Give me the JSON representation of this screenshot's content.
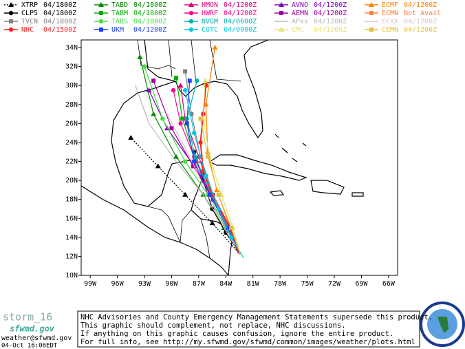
{
  "map": {
    "storm": "storm_16",
    "lonlim": [
      100,
      65
    ],
    "latlim": [
      10,
      34.8
    ],
    "lonticks": [
      {
        "value": 99,
        "label": "99W"
      },
      {
        "value": 96,
        "label": "96W"
      },
      {
        "value": 93,
        "label": "93W"
      },
      {
        "value": 90,
        "label": "90W"
      },
      {
        "value": 87,
        "label": "87W"
      },
      {
        "value": 84,
        "label": "84W"
      },
      {
        "value": 81,
        "label": "81W"
      },
      {
        "value": 78,
        "label": "78W"
      },
      {
        "value": 75,
        "label": "75W"
      },
      {
        "value": 72,
        "label": "72W"
      },
      {
        "value": 69,
        "label": "69W"
      },
      {
        "value": 66,
        "label": "66W"
      }
    ],
    "latticks": [
      {
        "value": 34,
        "label": "34N"
      },
      {
        "value": 32,
        "label": "32N"
      },
      {
        "value": 30,
        "label": "30N"
      },
      {
        "value": 28,
        "label": "28N"
      },
      {
        "value": 26,
        "label": "26N"
      },
      {
        "value": 24,
        "label": "24N"
      },
      {
        "value": 22,
        "label": "22N"
      },
      {
        "value": 20,
        "label": "20N"
      },
      {
        "value": 18,
        "label": "18N"
      },
      {
        "value": 16,
        "label": "16N"
      },
      {
        "value": 14,
        "label": "14N"
      },
      {
        "value": 12,
        "label": "12N"
      },
      {
        "value": 10,
        "label": "10N"
      }
    ],
    "models": [
      {
        "name": "XTRP",
        "time": "04/1800Z",
        "color": "#000000",
        "marker": "triangle",
        "dash": true,
        "lon": [
          82.4,
          85.5,
          88.5,
          91.5,
          94.5
        ],
        "lat": [
          12.2,
          15.5,
          18.5,
          21.5,
          24.5
        ]
      },
      {
        "name": "TABD",
        "time": "04/1800Z",
        "color": "#008800",
        "marker": "triangle",
        "lon": [
          82.4,
          84.2,
          86.5,
          89.5,
          92,
          93.5
        ],
        "lat": [
          12.2,
          15,
          18.5,
          22.5,
          27,
          33
        ]
      },
      {
        "name": "HMON",
        "time": "04/1200Z",
        "color": "#e0007a",
        "marker": "triangle",
        "lon": [
          82.4,
          83.8,
          85.5,
          87,
          88.5,
          89
        ],
        "lat": [
          12.2,
          15,
          18.5,
          22.5,
          26.5,
          30
        ]
      },
      {
        "name": "AVNO",
        "time": "04/1200Z",
        "color": "#8000c0",
        "marker": "triangle",
        "lon": [
          82.4,
          83.6,
          85.3,
          87.5,
          90.5,
          92.5
        ],
        "lat": [
          12.2,
          15,
          18,
          21.5,
          25.5,
          29.5
        ]
      },
      {
        "name": "ECMF",
        "time": "04/1200Z",
        "color": "#ff8000",
        "marker": "triangle",
        "lon": [
          82.4,
          83.5,
          85,
          86,
          86.2,
          85.2
        ],
        "lat": [
          12.2,
          15,
          19,
          23,
          28,
          34
        ]
      },
      {
        "name": "CLP5",
        "time": "04/1800Z",
        "color": "#000000",
        "marker": "circle",
        "lon": [
          82.4,
          84,
          85.5,
          86.5,
          87.5
        ],
        "lat": [
          12.2,
          14.5,
          17,
          20,
          23
        ]
      },
      {
        "name": "TABM",
        "time": "04/1800Z",
        "color": "#00b000",
        "marker": "square",
        "lon": [
          82.4,
          83.8,
          85.6,
          87.3,
          88.8,
          89.5
        ],
        "lat": [
          12.2,
          15,
          18.5,
          22,
          26.5,
          30.8
        ]
      },
      {
        "name": "HWRF",
        "time": "04/1200Z",
        "color": "#ff0090",
        "marker": "circle",
        "lon": [
          82.4,
          83.9,
          85.7,
          87.5,
          89,
          89.8
        ],
        "lat": [
          12.2,
          15,
          18.5,
          22.5,
          26,
          29.5
        ]
      },
      {
        "name": "AEMN",
        "time": "04/1200Z",
        "color": "#a000a0",
        "marker": "square",
        "lon": [
          82.4,
          83.7,
          85.4,
          87.6,
          90,
          92
        ],
        "lat": [
          12.2,
          15,
          18,
          21.5,
          25.5,
          30.5
        ]
      },
      {
        "name": "ECMN",
        "time": "Not Avail",
        "color": "#ff8040",
        "marker": "square"
      },
      {
        "name": "TVCN",
        "time": "04/1800Z",
        "color": "#808080",
        "marker": "square",
        "lon": [
          82.4,
          83.7,
          85.4,
          86.8,
          87.8,
          88.5
        ],
        "lat": [
          12.2,
          15,
          18.5,
          22.5,
          27,
          31.5
        ]
      },
      {
        "name": "TABS",
        "time": "04/1800Z",
        "color": "#40e040",
        "marker": "circle",
        "lon": [
          82.4,
          84,
          86,
          88.5,
          91,
          93
        ],
        "lat": [
          12.2,
          15,
          18.5,
          22,
          26.5,
          32
        ]
      },
      {
        "name": "NVGM",
        "time": "04/0600Z",
        "color": "#00b0b0",
        "marker": "circle",
        "lon": [
          82.4,
          83.8,
          85.6,
          87.4,
          88.3,
          87.2
        ],
        "lat": [
          12.2,
          15,
          18.5,
          22.5,
          26.5,
          30.5
        ]
      },
      {
        "name": "APxx",
        "time": "04/1200Z",
        "color": "#b8b8b8",
        "marker": "none",
        "lon": [
          82.4,
          84,
          86.5,
          89.5,
          92.5,
          94
        ],
        "lat": [
          12.2,
          15,
          18.5,
          22,
          26,
          30
        ]
      },
      {
        "name": "EEXX",
        "time": "04/1200Z",
        "color": "#e0c0c8",
        "marker": "none",
        "lon": [
          82.4,
          84.2,
          86,
          88,
          90.5
        ],
        "lat": [
          12.2,
          15,
          18.5,
          22.5,
          27
        ]
      },
      {
        "name": "NHC",
        "time": "04/1500Z",
        "color": "#ff2020",
        "marker": "circle",
        "lon": [
          82.6,
          83.5,
          85.5,
          86.5,
          86.8,
          86.5,
          86.2
        ],
        "lat": [
          12.3,
          15,
          18.5,
          21,
          24,
          27,
          30
        ]
      },
      {
        "name": "UKM",
        "time": "04/1200Z",
        "color": "#2040ff",
        "marker": "square",
        "lon": [
          82.4,
          83.8,
          85.8,
          87.5,
          88.3,
          88
        ],
        "lat": [
          12.2,
          15,
          18.5,
          22,
          26,
          30.5
        ]
      },
      {
        "name": "COTC",
        "time": "04/0000Z",
        "color": "#00c8e0",
        "marker": "circle",
        "lon": [
          82,
          83.4,
          84.8,
          86.2,
          87.5,
          88.5
        ],
        "lat": [
          11.8,
          14,
          17,
          20.5,
          25,
          29.5
        ]
      },
      {
        "name": "CMC",
        "time": "04/1200Z",
        "color": "#e8e070",
        "marker": "triangle",
        "lon": [
          82.4,
          83.2,
          84.5,
          85.8,
          86.5,
          86.3
        ],
        "lat": [
          12.2,
          15,
          18.5,
          22.5,
          26.5,
          30.5
        ]
      },
      {
        "name": "CEMN",
        "time": "04/1200Z",
        "color": "#e0c040",
        "marker": "square",
        "lon": [
          82.4,
          83.4,
          84.8,
          86,
          86.8
        ],
        "lat": [
          12.2,
          15,
          18.5,
          22.5,
          26.5
        ]
      }
    ],
    "notice": [
      "NHC Advisories and County Emergency Management Statements supersede this product.",
      "This graphic should complement, not replace, NHC discussions.",
      "If anything on this graphic causes confusion, ignore the entire product.",
      "For full info, see  http://my.sfwmd.gov/sfwmd/common/images/weather/plots.html"
    ],
    "site": "sfwmd.gov",
    "email": "weather@sfwmd.gov",
    "timestamp": "04-Oct 16:06EDT"
  }
}
